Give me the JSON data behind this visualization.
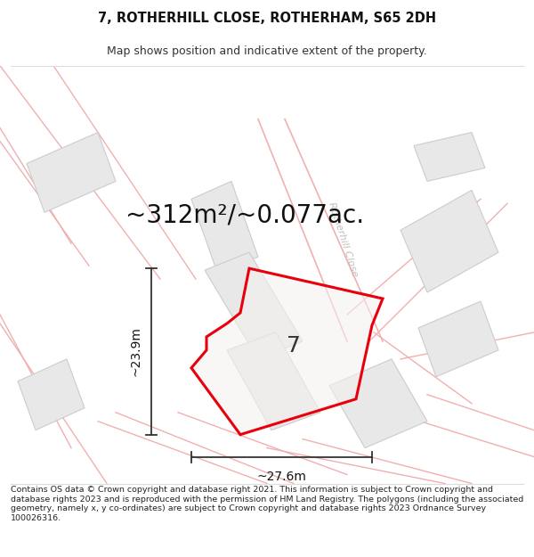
{
  "title": "7, ROTHERHILL CLOSE, ROTHERHAM, S65 2DH",
  "subtitle": "Map shows position and indicative extent of the property.",
  "area_text": "~312m²/~0.077ac.",
  "label_7": "7",
  "dim_h": "~27.6m",
  "dim_v": "~23.9m",
  "road_label": "Rotherhill Close",
  "footer": "Contains OS data © Crown copyright and database right 2021. This information is subject to Crown copyright and database rights 2023 and is reproduced with the permission of HM Land Registry. The polygons (including the associated geometry, namely x, y co-ordinates) are subject to Crown copyright and database rights 2023 Ordnance Survey 100026316.",
  "bg_color": "#ffffff",
  "map_bg": "#f8f8f8",
  "property_color": "#e8000d",
  "building_fill": "#e8e8e8",
  "building_edge": "#cccccc",
  "road_line_color": "#f0b0b0",
  "title_fontsize": 10.5,
  "subtitle_fontsize": 9,
  "area_fontsize": 20,
  "dim_fontsize": 10,
  "footer_fontsize": 6.8,
  "road_label_fontsize": 8,
  "label_7_fontsize": 18
}
